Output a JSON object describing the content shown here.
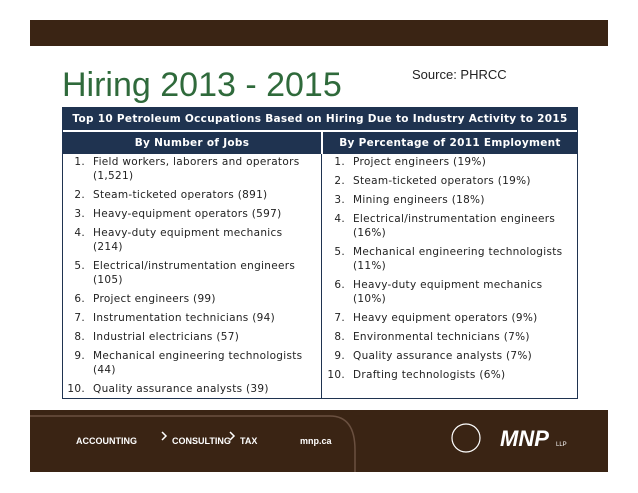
{
  "slide": {
    "title": "Hiring 2013 - 2015",
    "source": "Source: PHRCC",
    "table": {
      "heading": "Top 10 Petroleum Occupations Based on Hiring Due to Industry Activity to 2015",
      "columns": [
        {
          "header": "By Number of Jobs",
          "items": [
            {
              "num": "1.",
              "text": "Field workers, laborers and operators (1,521)"
            },
            {
              "num": "2.",
              "text": "Steam-ticketed operators (891)"
            },
            {
              "num": "3.",
              "text": "Heavy-equipment operators (597)"
            },
            {
              "num": "4.",
              "text": "Heavy-duty equipment mechanics (214)"
            },
            {
              "num": "5.",
              "text": "Electrical/instrumentation engineers (105)"
            },
            {
              "num": "6.",
              "text": "Project engineers (99)"
            },
            {
              "num": "7.",
              "text": "Instrumentation technicians (94)"
            },
            {
              "num": "8.",
              "text": "Industrial electricians (57)"
            },
            {
              "num": "9.",
              "text": "Mechanical engineering technologists (44)"
            },
            {
              "num": "10.",
              "text": "Quality assurance analysts (39)"
            }
          ]
        },
        {
          "header": "By Percentage of 2011 Employment",
          "items": [
            {
              "num": "1.",
              "text": "Project engineers (19%)"
            },
            {
              "num": "2.",
              "text": "Steam-ticketed operators (19%)"
            },
            {
              "num": "3.",
              "text": "Mining engineers (18%)"
            },
            {
              "num": "4.",
              "text": "Electrical/instrumentation engineers (16%)"
            },
            {
              "num": "5.",
              "text": "Mechanical engineering technologists (11%)"
            },
            {
              "num": "6.",
              "text": "Heavy-duty equipment mechanics (10%)"
            },
            {
              "num": "7.",
              "text": "Heavy equipment operators (9%)"
            },
            {
              "num": "8.",
              "text": "Environmental technicians (7%)"
            },
            {
              "num": "9.",
              "text": "Quality assurance analysts (7%)"
            },
            {
              "num": "10.",
              "text": "Drafting technologists (6%)"
            }
          ]
        }
      ]
    },
    "footer": {
      "services": [
        "ACCOUNTING",
        "CONSULTING",
        "TAX"
      ],
      "website": "mnp.ca",
      "logo": "MNP",
      "logo_suffix": "LLP"
    }
  }
}
